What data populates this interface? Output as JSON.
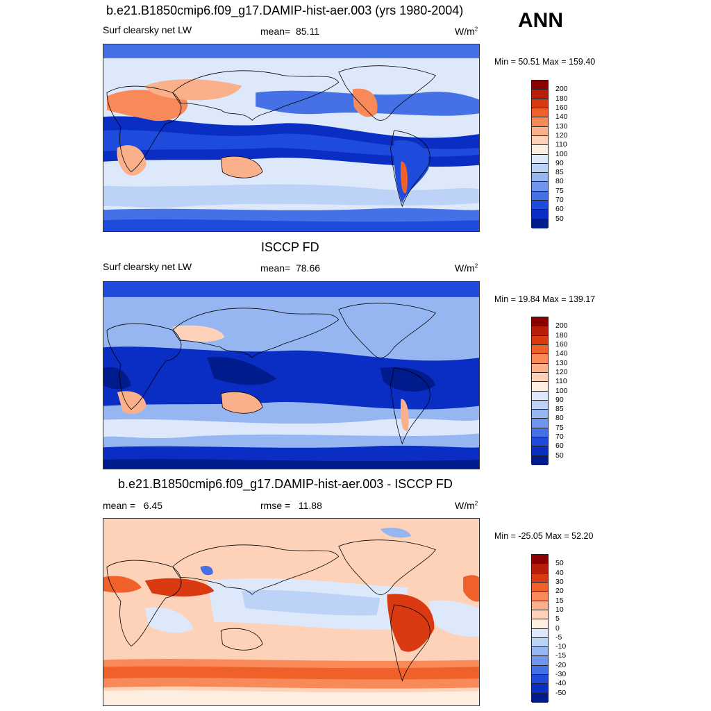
{
  "season": "ANN",
  "panels": [
    {
      "title": "b.e21.B1850cmip6.f09_g17.DAMIP-hist-aer.003 (yrs 1980-2004)",
      "variable": "Surf clearsky net LW",
      "stat_label": "mean=",
      "stat_value": "85.11",
      "units": "W/m",
      "units_exp": "2",
      "minmax": "Min =  50.51 Max = 159.40",
      "colorbar_levels": [
        "200",
        "180",
        "160",
        "140",
        "130",
        "120",
        "110",
        "100",
        "90",
        "85",
        "80",
        "75",
        "70",
        "60",
        "50"
      ],
      "colorbar_colors": [
        "#8b0000",
        "#b81d0a",
        "#d93a12",
        "#f0602a",
        "#f88a5a",
        "#fbb08c",
        "#fdd2b8",
        "#fdeee0",
        "#dde9fb",
        "#bcd2f7",
        "#96b6f2",
        "#6f95ee",
        "#4570e6",
        "#1e4bdc",
        "#0a2dc4",
        "#001b8c"
      ]
    },
    {
      "title": "ISCCP FD",
      "variable": "Surf clearsky net LW",
      "stat_label": "mean=",
      "stat_value": "78.66",
      "units": "W/m",
      "units_exp": "2",
      "minmax": "Min =  19.84 Max = 139.17",
      "colorbar_levels": [
        "200",
        "180",
        "160",
        "140",
        "130",
        "120",
        "110",
        "100",
        "90",
        "85",
        "80",
        "75",
        "70",
        "60",
        "50"
      ],
      "colorbar_colors": [
        "#8b0000",
        "#b81d0a",
        "#d93a12",
        "#f0602a",
        "#f88a5a",
        "#fbb08c",
        "#fdd2b8",
        "#fdeee0",
        "#dde9fb",
        "#bcd2f7",
        "#96b6f2",
        "#6f95ee",
        "#4570e6",
        "#1e4bdc",
        "#0a2dc4",
        "#001b8c"
      ]
    },
    {
      "title": "b.e21.B1850cmip6.f09_g17.DAMIP-hist-aer.003 - ISCCP FD",
      "stat_label": "mean =",
      "stat_value": "6.45",
      "stat2_label": "rmse =",
      "stat2_value": "11.88",
      "units": "W/m",
      "units_exp": "2",
      "minmax": "Min = -25.05 Max =  52.20",
      "colorbar_levels": [
        "50",
        "40",
        "30",
        "20",
        "15",
        "10",
        "5",
        "0",
        "-5",
        "-10",
        "-15",
        "-20",
        "-30",
        "-40",
        "-50"
      ],
      "colorbar_colors": [
        "#8b0000",
        "#b81d0a",
        "#d93a12",
        "#f0602a",
        "#f88a5a",
        "#fbb08c",
        "#fdd2b8",
        "#fdeee0",
        "#dde9fb",
        "#bcd2f7",
        "#96b6f2",
        "#6f95ee",
        "#4570e6",
        "#1e4bdc",
        "#0a2dc4",
        "#001b8c"
      ]
    }
  ]
}
